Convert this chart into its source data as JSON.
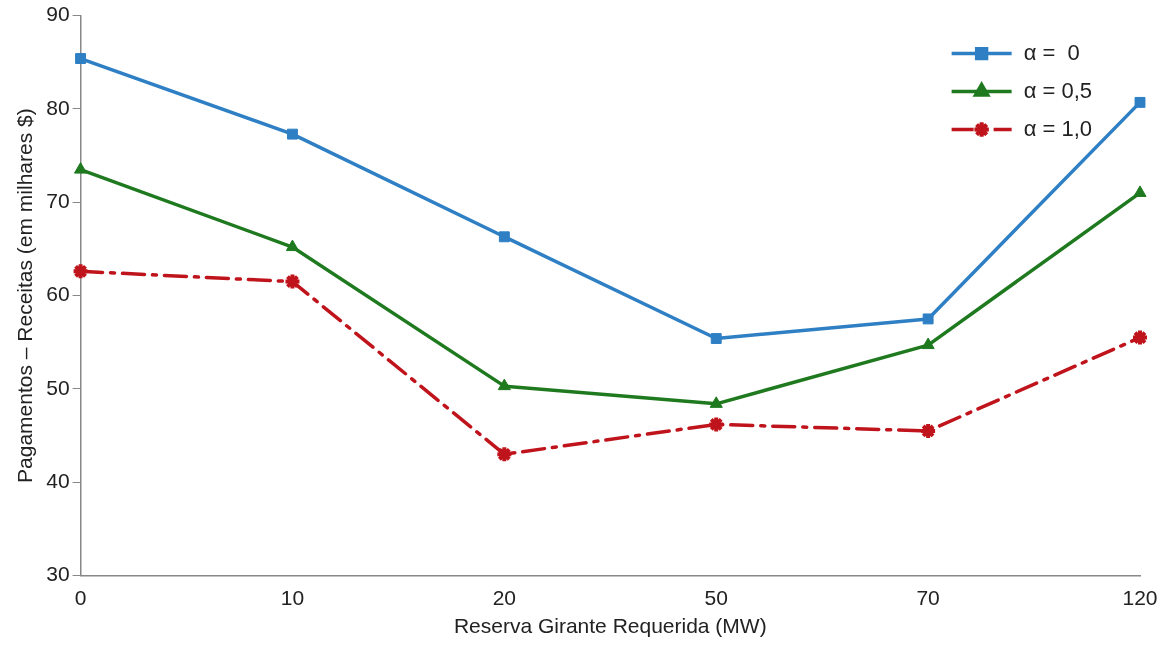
{
  "chart_data": {
    "type": "line",
    "xlabel": "Reserva Girante Requerida (MW)",
    "ylabel": "Pagamentos – Receitas (em milhares $)",
    "categories": [
      "0",
      "10",
      "20",
      "50",
      "70",
      "120"
    ],
    "ylim": [
      30,
      90
    ],
    "yticks": [
      30,
      40,
      50,
      60,
      70,
      80,
      90
    ],
    "grid": false,
    "legend": "top right",
    "series": [
      {
        "name": "α =  0",
        "color": "#2e7fc4",
        "marker": "square",
        "line_style": "solid",
        "values": [
          85.4,
          77.3,
          66.3,
          55.4,
          57.5,
          80.7
        ]
      },
      {
        "name": "α = 0,5",
        "color": "#1f7a1f",
        "marker": "triangle",
        "line_style": "solid",
        "values": [
          73.5,
          65.2,
          50.3,
          48.4,
          54.7,
          71.0
        ]
      },
      {
        "name": "α = 1,0",
        "color": "#c0141c",
        "marker": "cross",
        "line_style": "dashed",
        "values": [
          62.6,
          61.5,
          43.0,
          46.2,
          45.5,
          55.5
        ]
      }
    ]
  }
}
